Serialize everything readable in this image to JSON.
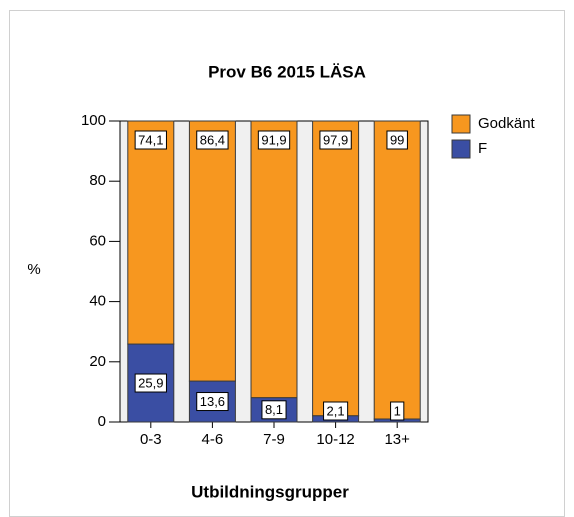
{
  "chart_data": {
    "type": "stacked_bar",
    "title": "Prov B6 2015 LÄSA",
    "x_label": "Utbildningsgrupper",
    "y_label": "%",
    "categories": [
      "0-3",
      "4-6",
      "7-9",
      "10-12",
      "13+"
    ],
    "series": [
      {
        "name": "Godkänt",
        "color": "#f7971f",
        "values": [
          74.1,
          86.4,
          91.9,
          97.9,
          99
        ],
        "value_labels": [
          "74,1",
          "86,4",
          "91,9",
          "97,9",
          "99"
        ]
      },
      {
        "name": "F",
        "color": "#3a4ea3",
        "values": [
          25.9,
          13.6,
          8.1,
          2.1,
          1
        ],
        "value_labels": [
          "25,9",
          "13,6",
          "8,1",
          "2,1",
          "1"
        ]
      }
    ],
    "ylim": [
      0,
      100
    ],
    "yticks": [
      0,
      20,
      40,
      60,
      80,
      100
    ]
  }
}
